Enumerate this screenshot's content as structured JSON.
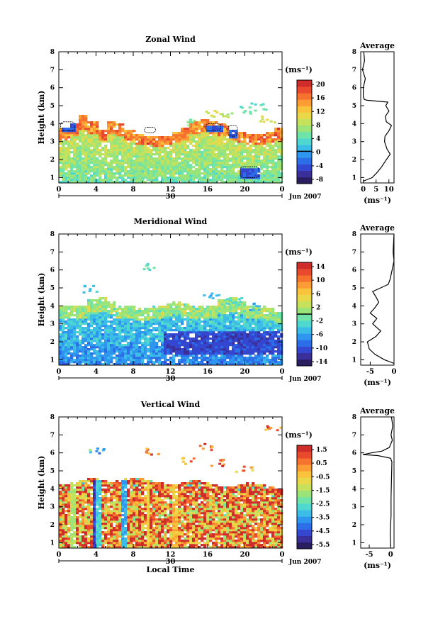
{
  "date_label": "Jun 2007",
  "day_label": "30",
  "colorbar_unit": "(ms⁻¹)",
  "xlabel": "Local Time",
  "chart_data": [
    {
      "type": "heatmap",
      "title": "Zonal Wind",
      "ylabel": "Height (km)",
      "xlabel": "",
      "x_ticks": [
        "0",
        "4",
        "8",
        "12",
        "16",
        "20",
        "0"
      ],
      "x_range": [
        0,
        24
      ],
      "y_ticks": [
        "1",
        "2",
        "3",
        "4",
        "5",
        "6",
        "7",
        "8"
      ],
      "y_range": [
        0.7,
        8
      ],
      "colorbar": {
        "ticks": [
          "20",
          "16",
          "12",
          "8",
          "4",
          "0",
          "-4",
          "-8"
        ],
        "range": [
          -10,
          22
        ],
        "zero": 0
      },
      "field": {
        "top_km": [
          3.7,
          4.0,
          4.4,
          4.1,
          3.6,
          4.1,
          3.9,
          3.6,
          3.4,
          3.3,
          3.2,
          3.3,
          3.5,
          3.7,
          4.1,
          4.2,
          4.1,
          3.9,
          3.6,
          3.5,
          3.4,
          3.4,
          3.5,
          3.7
        ],
        "low_val": 5,
        "high_val": 10,
        "top_val": 16,
        "negative_patches": [
          [
            0.2,
            3.6,
            1.7,
            4.1
          ],
          [
            9.2,
            3.5,
            10.4,
            3.8
          ],
          [
            15.8,
            3.6,
            17.4,
            4.0
          ],
          [
            18.2,
            3.3,
            19.2,
            3.9
          ],
          [
            19.5,
            1.0,
            21.5,
            1.6
          ]
        ],
        "scatter_above": [
          [
            16.2,
            4.6,
            10
          ],
          [
            17.8,
            4.5,
            8
          ],
          [
            20.1,
            4.8,
            5
          ],
          [
            21.3,
            5.0,
            4
          ],
          [
            22.3,
            4.3,
            9
          ],
          [
            14.3,
            4.1,
            6
          ]
        ]
      },
      "average_profile": {
        "title": "Average",
        "xlabel": "(ms⁻¹)",
        "x_ticks": [
          "0",
          "5",
          "10"
        ],
        "x_range": [
          -1,
          12
        ],
        "height_km": [
          0.8,
          1.0,
          1.3,
          1.6,
          2.0,
          2.3,
          2.6,
          3.0,
          3.3,
          3.6,
          3.9,
          4.1,
          4.4,
          4.7,
          5.0,
          5.2,
          5.3,
          5.35,
          5.5,
          6.0,
          6.5,
          7.0,
          7.5,
          8.0
        ],
        "wind_ms": [
          0,
          3.5,
          5.5,
          7.2,
          9.0,
          10.5,
          9.2,
          8.3,
          8.5,
          10.0,
          11.0,
          9.0,
          8.6,
          10.0,
          8.8,
          9.6,
          1.5,
          0.4,
          0.0,
          0.0,
          0.8,
          -0.3,
          0.5,
          0.2
        ]
      }
    },
    {
      "type": "heatmap",
      "title": "Meridional Wind",
      "ylabel": "Height (km)",
      "xlabel": "",
      "x_ticks": [
        "0",
        "4",
        "8",
        "12",
        "16",
        "20",
        "0"
      ],
      "x_range": [
        0,
        24
      ],
      "y_ticks": [
        "1",
        "2",
        "3",
        "4",
        "5",
        "6",
        "7",
        "8"
      ],
      "y_range": [
        0.7,
        8
      ],
      "colorbar": {
        "ticks": [
          "14",
          "10",
          "6",
          "2",
          "-2",
          "-6",
          "-10",
          "-14"
        ],
        "range": [
          -16,
          16
        ],
        "zero": 0
      },
      "field": {
        "top_km": [
          3.9,
          3.9,
          4.0,
          4.3,
          4.4,
          4.2,
          4.0,
          3.9,
          3.8,
          3.8,
          3.9,
          4.1,
          4.2,
          4.1,
          4.0,
          3.9,
          4.0,
          4.3,
          4.4,
          4.2,
          4.0,
          3.9,
          3.8,
          3.6
        ],
        "low_val": -8,
        "high_val": -3,
        "top_val": 1,
        "negative_patches": [],
        "dark_band": [
          11.0,
          24.0,
          1.3,
          2.7,
          -11
        ],
        "scatter_above": [
          [
            3.3,
            5.0,
            -4
          ],
          [
            9.8,
            6.2,
            -2
          ],
          [
            16.4,
            4.6,
            -6
          ],
          [
            18.7,
            4.3,
            -3
          ],
          [
            21.0,
            4.0,
            -5
          ]
        ]
      },
      "average_profile": {
        "title": "Average",
        "xlabel": "(ms⁻¹)",
        "x_ticks": [
          "-5",
          "0"
        ],
        "x_range": [
          -7,
          0
        ],
        "height_km": [
          0.8,
          1.0,
          1.3,
          1.6,
          2.0,
          2.3,
          2.6,
          3.0,
          3.3,
          3.6,
          3.9,
          4.2,
          4.5,
          4.8,
          5.0,
          5.2,
          5.5,
          6.0,
          6.5,
          7.0,
          8.0
        ],
        "wind_ms": [
          0,
          -2.0,
          -4.0,
          -5.2,
          -5.6,
          -3.8,
          -2.8,
          -4.5,
          -3.6,
          -5.0,
          -4.0,
          -3.2,
          -3.8,
          -4.5,
          -2.8,
          -1.2,
          -0.8,
          -0.4,
          0.0,
          -0.2,
          0.0
        ]
      }
    },
    {
      "type": "heatmap",
      "title": "Vertical Wind",
      "ylabel": "Height (km)",
      "xlabel": "Local Time",
      "x_ticks": [
        "0",
        "4",
        "8",
        "12",
        "16",
        "20",
        "0"
      ],
      "x_range": [
        0,
        24
      ],
      "y_ticks": [
        "1",
        "2",
        "3",
        "4",
        "5",
        "6",
        "7",
        "8"
      ],
      "y_range": [
        0.7,
        8
      ],
      "colorbar": {
        "ticks": [
          "1.5",
          "0.5",
          "-0.5",
          "-1.5",
          "-2.5",
          "-3.5",
          "-4.5",
          "-5.5"
        ],
        "range": [
          -6.2,
          2.2
        ],
        "zero": null
      },
      "field": {
        "top_km": [
          4.2,
          4.3,
          4.4,
          4.5,
          4.4,
          4.3,
          4.4,
          4.5,
          4.5,
          4.4,
          4.3,
          4.2,
          4.2,
          4.3,
          4.4,
          4.3,
          4.2,
          4.1,
          4.1,
          4.2,
          4.3,
          4.2,
          4.1,
          4.0
        ],
        "low_val": 0.6,
        "high_val": 0.3,
        "top_val": 0.9,
        "negative_patches": [],
        "columns": [
          [
            1.3,
            -1.5
          ],
          [
            3.8,
            -5.0
          ],
          [
            4.1,
            -3.0
          ],
          [
            6.9,
            -3.5
          ],
          [
            9.5,
            -0.5
          ],
          [
            12.4,
            -0.2
          ]
        ],
        "scatter_above": [
          [
            4.0,
            6.2,
            -3.0
          ],
          [
            9.8,
            6.1,
            1.0
          ],
          [
            13.6,
            5.6,
            1.0
          ],
          [
            15.5,
            6.4,
            1.3
          ],
          [
            17.0,
            5.5,
            0.8
          ],
          [
            19.8,
            5.2,
            0.5
          ],
          [
            23.0,
            7.5,
            1.0
          ]
        ]
      },
      "average_profile": {
        "title": "Average",
        "xlabel": "(ms⁻¹)",
        "x_ticks": [
          "-5",
          "0"
        ],
        "x_range": [
          -7,
          0.8
        ],
        "height_km": [
          0.8,
          1.5,
          2.5,
          3.5,
          4.5,
          5.5,
          5.7,
          5.85,
          5.9,
          6.0,
          6.1,
          6.3,
          6.7,
          7.0,
          7.5,
          8.0
        ],
        "wind_ms": [
          0.0,
          -0.1,
          0.1,
          0.1,
          0.2,
          0.3,
          0.0,
          -3.0,
          -6.5,
          -4.5,
          -2.0,
          -0.3,
          0.4,
          0.1,
          0.5,
          0.2
        ]
      }
    }
  ]
}
